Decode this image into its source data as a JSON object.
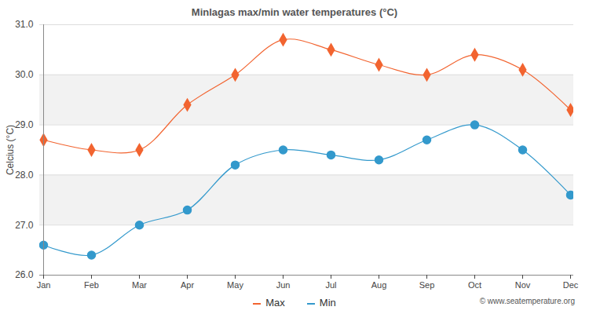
{
  "chart_data": {
    "type": "line",
    "title": "Minlagas max/min water temperatures (°C)",
    "y_label": "Celcius (°C)",
    "caption": "© www.seatemperature.org",
    "categories": [
      "Jan",
      "Feb",
      "Mar",
      "Apr",
      "May",
      "Jun",
      "Jul",
      "Aug",
      "Sep",
      "Oct",
      "Nov",
      "Dec"
    ],
    "series": [
      {
        "name": "Max",
        "color": "#f26430",
        "marker": "diamond",
        "values": [
          28.7,
          28.5,
          28.5,
          29.4,
          30.0,
          30.7,
          30.5,
          30.2,
          30.0,
          30.4,
          30.1,
          29.3
        ]
      },
      {
        "name": "Min",
        "color": "#3399cc",
        "marker": "circle",
        "values": [
          26.6,
          26.4,
          27.0,
          27.3,
          28.2,
          28.5,
          28.4,
          28.3,
          28.7,
          29.0,
          28.5,
          27.6
        ]
      }
    ],
    "ylim": [
      26,
      31
    ],
    "yticks": [
      26,
      27,
      28,
      29,
      30,
      31
    ],
    "grid": true,
    "legend": "bottom"
  }
}
